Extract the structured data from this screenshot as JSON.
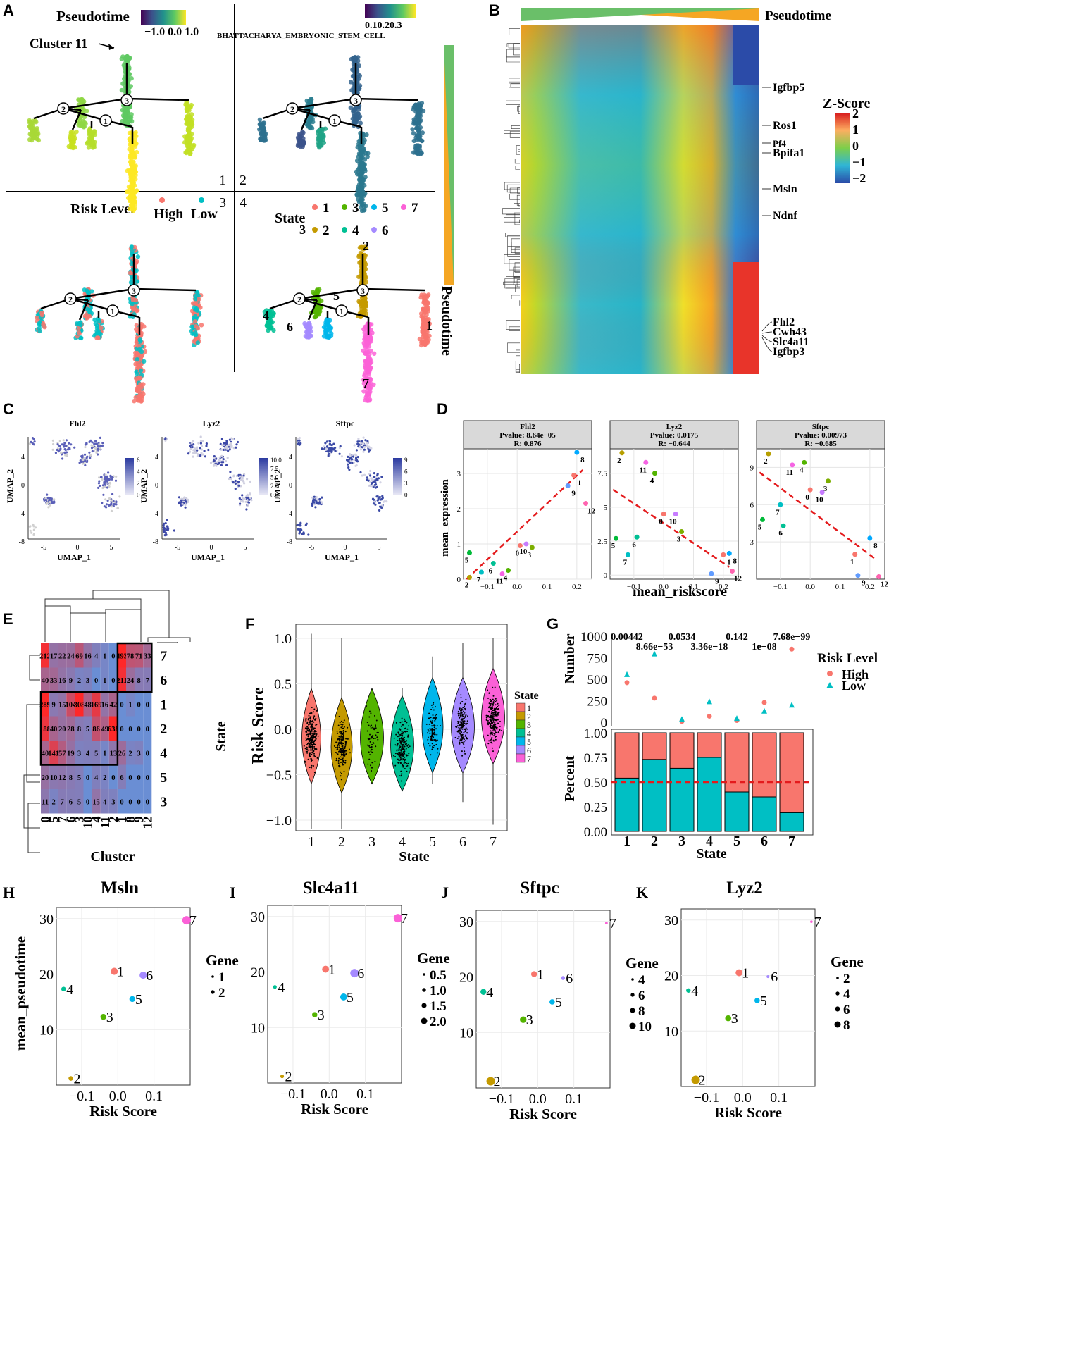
{
  "panels": {
    "A": {
      "letter": "A",
      "pseudotime_label": "Pseudotime",
      "pseudotime_ticks": "−1.0 0.0 1.0",
      "gene_set": "BHATTACHARYA_EMBRYONIC_STEM_CELL",
      "gene_set_ticks": "0.10.20.3",
      "cluster_callout": "Cluster 11",
      "quadrants": [
        "1",
        "2",
        "3",
        "4"
      ],
      "nodes": [
        "1",
        "2",
        "3"
      ],
      "risk_title": "Risk Level",
      "risk_levels": [
        "High",
        "Low"
      ],
      "state_title": "State",
      "states": [
        "1",
        "2",
        "3",
        "4",
        "5",
        "6",
        "7"
      ],
      "side_label": "Pseudotime"
    },
    "B": {
      "letter": "B",
      "top_label": "Pseudotime",
      "zscore_title": "Z-Score",
      "zscore_ticks": [
        "2",
        "1",
        "0",
        "−1",
        "−2"
      ],
      "genes_mid": [
        "Igfbp5",
        "Ros1",
        "Pf4",
        "Bpifa1",
        "Msln",
        "Ndnf"
      ],
      "genes_bottom": [
        "Fhl2",
        "Cwh43",
        "Slc4a11",
        "Igfbp3"
      ]
    },
    "C": {
      "letter": "C",
      "xlabel": "UMAP_1",
      "ylabel": "UMAP_2",
      "x_ticks": [
        "-5",
        "0",
        "5"
      ],
      "y_ticks": [
        "4",
        "0",
        "-4",
        "-8"
      ],
      "maps": [
        {
          "gene": "Fhl2",
          "legend": [
            "6",
            "4",
            "2",
            "0"
          ]
        },
        {
          "gene": "Lyz2",
          "legend": [
            "10.0",
            "7.5",
            "5.0",
            "2.5",
            "0.0"
          ]
        },
        {
          "gene": "Sftpc",
          "legend": [
            "9",
            "6",
            "3",
            "0"
          ]
        }
      ]
    },
    "E": {
      "letter": "E",
      "xlabel": "Cluster",
      "ylabel": "State",
      "clusters": [
        "0",
        "5",
        "7",
        "6",
        "3",
        "10",
        "4",
        "11",
        "2",
        "1",
        "8",
        "9",
        "12"
      ],
      "states": [
        "7",
        "6",
        "1",
        "2",
        "4",
        "5",
        "3"
      ],
      "matrix": [
        [
          "212",
          "17",
          "22",
          "24",
          "69",
          "16",
          "4",
          "1",
          "0",
          "493",
          "78",
          "71",
          "33"
        ],
        [
          "40",
          "33",
          "16",
          "9",
          "2",
          "3",
          "0",
          "1",
          "0",
          "211",
          "24",
          "8",
          "7"
        ],
        [
          "289",
          "9",
          "15",
          "104",
          "308",
          "48",
          "169",
          "16",
          "42",
          "0",
          "1",
          "0",
          "0"
        ],
        [
          "188",
          "40",
          "20",
          "28",
          "8",
          "5",
          "86",
          "49",
          "638",
          "0",
          "0",
          "0",
          "0"
        ],
        [
          "40",
          "141",
          "57",
          "19",
          "3",
          "4",
          "5",
          "1",
          "13",
          "26",
          "2",
          "3",
          "0"
        ],
        [
          "20",
          "10",
          "12",
          "8",
          "5",
          "0",
          "4",
          "2",
          "0",
          "6",
          "0",
          "0",
          "0"
        ],
        [
          "11",
          "2",
          "7",
          "6",
          "5",
          "0",
          "15",
          "4",
          "3",
          "0",
          "0",
          "0",
          "0"
        ]
      ]
    },
    "F": {
      "letter": "F",
      "xlabel": "State",
      "ylabel": "Risk Score",
      "legend_title": "State",
      "y_ticks": [
        "1.0",
        "0.5",
        "0.0",
        "−0.5",
        "−1.0"
      ],
      "states": [
        "1",
        "2",
        "3",
        "4",
        "5",
        "6",
        "7"
      ]
    },
    "G": {
      "letter": "G",
      "top_ylabel": "Number",
      "bottom_ylabel": "Percent",
      "xlabel": "State",
      "top_y_ticks": [
        "1000",
        "750",
        "500",
        "250",
        "0"
      ],
      "bottom_y_ticks": [
        "1.00",
        "0.75",
        "0.50",
        "0.25",
        "0.00"
      ],
      "pvalues_upper": [
        "0.00442",
        "0.0534",
        "0.142",
        "7.68e−99"
      ],
      "pvalues_lower": [
        "8.66e−53",
        "3.36e−18",
        "1e−08"
      ],
      "legend_title": "Risk Level",
      "legend_items": [
        "High",
        "Low"
      ],
      "states": [
        "1",
        "2",
        "3",
        "4",
        "5",
        "6",
        "7"
      ]
    },
    "H": {
      "letter": "H",
      "title": "Msln",
      "legend_title": "Gene",
      "legend_items": [
        "1",
        "2"
      ]
    },
    "I": {
      "letter": "I",
      "title": "Slc4a11",
      "legend_title": "Gene",
      "legend_items": [
        "0.5",
        "1.0",
        "1.5",
        "2.0"
      ]
    },
    "J": {
      "letter": "J",
      "title": "Sftpc",
      "legend_title": "Gene",
      "legend_items": [
        "4",
        "6",
        "8",
        "10"
      ]
    },
    "K": {
      "letter": "K",
      "title": "Lyz2",
      "legend_title": "Gene",
      "legend_items": [
        "2",
        "4",
        "6",
        "8"
      ]
    },
    "HK_common": {
      "xlabel": "Risk Score",
      "ylabel": "mean_pseudotime",
      "x_ticks": [
        "−0.1",
        "0.0",
        "0.1"
      ],
      "y_ticks": [
        "30",
        "20",
        "10"
      ]
    }
  },
  "chart_data": [
    {
      "panel": "D",
      "type": "scatter",
      "letter": "D",
      "xlabel": "mean_riskscore",
      "ylabel": "mean_expression",
      "x_ticks": [
        "−0.1",
        "0.0",
        "0.1",
        "0.2"
      ],
      "facets": [
        {
          "strip": [
            "Fhl2",
            "Pvalue: 8.64e−05",
            "R:  0.876"
          ],
          "ylim": [
            0,
            3.7
          ],
          "y_ticks": [
            0,
            1,
            2,
            3
          ],
          "xlim": [
            -0.18,
            0.25
          ],
          "points": [
            {
              "label": "0",
              "x": 0.01,
              "y": 0.95,
              "color": "#F8766D"
            },
            {
              "label": "1",
              "x": 0.19,
              "y": 2.95,
              "color": "#F8766D"
            },
            {
              "label": "2",
              "x": -0.16,
              "y": 0.05,
              "color": "#B79F00"
            },
            {
              "label": "3",
              "x": 0.05,
              "y": 0.9,
              "color": "#7CAE00"
            },
            {
              "label": "4",
              "x": -0.03,
              "y": 0.25,
              "color": "#53B400"
            },
            {
              "label": "5",
              "x": -0.16,
              "y": 0.75,
              "color": "#00BA38"
            },
            {
              "label": "6",
              "x": -0.08,
              "y": 0.45,
              "color": "#00C094"
            },
            {
              "label": "7",
              "x": -0.12,
              "y": 0.2,
              "color": "#00BFC4"
            },
            {
              "label": "8",
              "x": 0.2,
              "y": 3.6,
              "color": "#00A9FF"
            },
            {
              "label": "9",
              "x": 0.17,
              "y": 2.65,
              "color": "#619CFF"
            },
            {
              "label": "10",
              "x": 0.03,
              "y": 1.0,
              "color": "#C77CFF"
            },
            {
              "label": "11",
              "x": -0.05,
              "y": 0.15,
              "color": "#F564E3"
            },
            {
              "label": "12",
              "x": 0.23,
              "y": 2.15,
              "color": "#FF64B0"
            }
          ],
          "fit": [
            [
              -0.17,
              0.0
            ],
            [
              0.22,
              3.1
            ]
          ]
        },
        {
          "strip": [
            "Lyz2",
            "Pvalue: 0.0175",
            "R:  −0.644"
          ],
          "ylim": [
            -0.3,
            9.3
          ],
          "y_ticks": [
            0,
            2.5,
            5,
            7.5
          ],
          "xlim": [
            -0.18,
            0.25
          ],
          "points": [
            {
              "label": "0",
              "x": 0.0,
              "y": 4.5,
              "color": "#F8766D"
            },
            {
              "label": "1",
              "x": 0.2,
              "y": 1.5,
              "color": "#F8766D"
            },
            {
              "label": "2",
              "x": -0.14,
              "y": 9.0,
              "color": "#B79F00"
            },
            {
              "label": "3",
              "x": 0.06,
              "y": 3.2,
              "color": "#7CAE00"
            },
            {
              "label": "4",
              "x": -0.03,
              "y": 7.5,
              "color": "#53B400"
            },
            {
              "label": "5",
              "x": -0.16,
              "y": 2.7,
              "color": "#00BA38"
            },
            {
              "label": "6",
              "x": -0.09,
              "y": 2.8,
              "color": "#00C094"
            },
            {
              "label": "7",
              "x": -0.12,
              "y": 1.5,
              "color": "#00BFC4"
            },
            {
              "label": "8",
              "x": 0.22,
              "y": 1.6,
              "color": "#00A9FF"
            },
            {
              "label": "9",
              "x": 0.16,
              "y": 0.1,
              "color": "#619CFF"
            },
            {
              "label": "10",
              "x": 0.04,
              "y": 4.5,
              "color": "#C77CFF"
            },
            {
              "label": "11",
              "x": -0.06,
              "y": 8.3,
              "color": "#F564E3"
            },
            {
              "label": "12",
              "x": 0.23,
              "y": 0.3,
              "color": "#FF64B0"
            }
          ],
          "fit": [
            [
              -0.17,
              6.3
            ],
            [
              0.22,
              0.6
            ]
          ]
        },
        {
          "strip": [
            "Sftpc",
            "Pvalue: 0.00973",
            "R:  −0.685"
          ],
          "ylim": [
            0,
            10.5
          ],
          "y_ticks": [
            3,
            6,
            9
          ],
          "xlim": [
            -0.18,
            0.25
          ],
          "points": [
            {
              "label": "0",
              "x": 0.0,
              "y": 7.2,
              "color": "#F8766D"
            },
            {
              "label": "1",
              "x": 0.15,
              "y": 2.0,
              "color": "#F8766D"
            },
            {
              "label": "2",
              "x": -0.14,
              "y": 10.1,
              "color": "#B79F00"
            },
            {
              "label": "3",
              "x": 0.06,
              "y": 7.9,
              "color": "#7CAE00"
            },
            {
              "label": "4",
              "x": -0.02,
              "y": 9.4,
              "color": "#53B400"
            },
            {
              "label": "5",
              "x": -0.16,
              "y": 4.8,
              "color": "#00BA38"
            },
            {
              "label": "6",
              "x": -0.09,
              "y": 4.3,
              "color": "#00C094"
            },
            {
              "label": "7",
              "x": -0.1,
              "y": 6.0,
              "color": "#00BFC4"
            },
            {
              "label": "8",
              "x": 0.2,
              "y": 3.3,
              "color": "#00A9FF"
            },
            {
              "label": "9",
              "x": 0.16,
              "y": 0.3,
              "color": "#619CFF"
            },
            {
              "label": "10",
              "x": 0.04,
              "y": 7.0,
              "color": "#C77CFF"
            },
            {
              "label": "11",
              "x": -0.06,
              "y": 9.2,
              "color": "#F564E3"
            },
            {
              "label": "12",
              "x": 0.23,
              "y": 0.2,
              "color": "#FF64B0"
            }
          ],
          "fit": [
            [
              -0.17,
              8.6
            ],
            [
              0.22,
              1.6
            ]
          ]
        }
      ]
    },
    {
      "panel": "G-top",
      "type": "scatter",
      "title": "Number",
      "categories": [
        "1",
        "2",
        "3",
        "4",
        "5",
        "6",
        "7"
      ],
      "series": [
        {
          "name": "High",
          "values": [
            460,
            280,
            10,
            70,
            20,
            230,
            850
          ],
          "color": "#F8766D"
        },
        {
          "name": "Low",
          "values": [
            550,
            790,
            30,
            235,
            40,
            125,
            195
          ],
          "color": "#00BFC4"
        }
      ],
      "ylim": [
        0,
        1000
      ]
    },
    {
      "panel": "G-bottom",
      "type": "bar",
      "title": "Percent",
      "categories": [
        "1",
        "2",
        "3",
        "4",
        "5",
        "6",
        "7"
      ],
      "series": [
        {
          "name": "Low",
          "values": [
            0.54,
            0.73,
            0.64,
            0.75,
            0.4,
            0.35,
            0.19
          ],
          "color": "#00BFC4"
        },
        {
          "name": "High",
          "values": [
            0.46,
            0.27,
            0.36,
            0.25,
            0.6,
            0.65,
            0.81
          ],
          "color": "#F8766D"
        }
      ],
      "hline": 0.5,
      "ylim": [
        0,
        1
      ]
    },
    {
      "panel": "H-K",
      "type": "scatter",
      "xlabel": "Risk Score",
      "ylabel": "mean_pseudotime",
      "xlim": [
        -0.17,
        0.2
      ],
      "ylim": [
        0,
        32
      ],
      "points": [
        {
          "label": "1",
          "x": -0.01,
          "y": 20.5,
          "color": "#F8766D"
        },
        {
          "label": "2",
          "x": -0.13,
          "y": 1.2,
          "color": "#C49A00"
        },
        {
          "label": "3",
          "x": -0.04,
          "y": 12.3,
          "color": "#53B400"
        },
        {
          "label": "4",
          "x": -0.15,
          "y": 17.3,
          "color": "#00C094"
        },
        {
          "label": "5",
          "x": 0.04,
          "y": 15.5,
          "color": "#00B6EB"
        },
        {
          "label": "6",
          "x": 0.07,
          "y": 19.8,
          "color": "#A58AFF"
        },
        {
          "label": "7",
          "x": 0.19,
          "y": 29.7,
          "color": "#FB61D7"
        }
      ],
      "gene_sizes": {
        "Msln": [
          2,
          1,
          1.5,
          1,
          1.5,
          2,
          2.5
        ],
        "Slc4a11": [
          1.5,
          0.5,
          1,
          0.5,
          1.5,
          2,
          2
        ],
        "Sftpc": [
          6,
          10,
          7,
          6,
          5,
          3,
          1
        ],
        "Lyz2": [
          6,
          8,
          5,
          3,
          4,
          1,
          0.5
        ]
      }
    }
  ]
}
